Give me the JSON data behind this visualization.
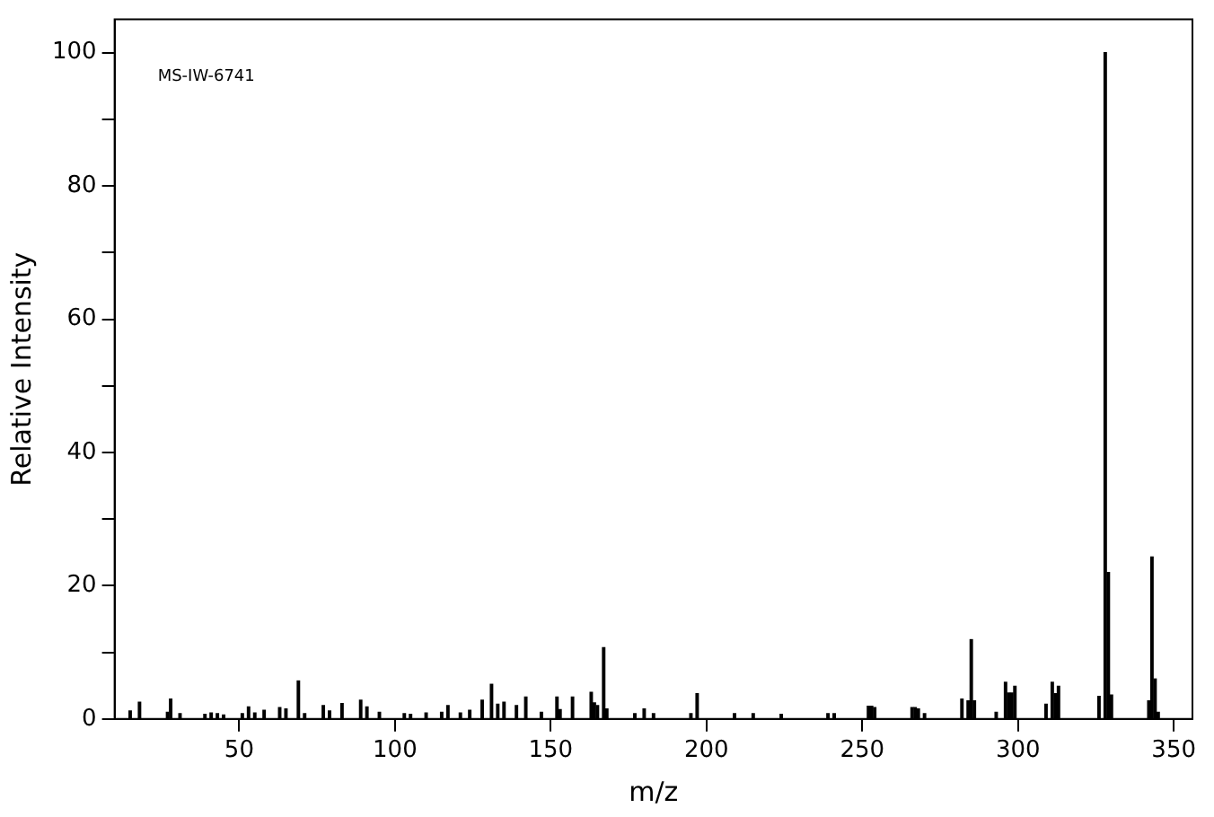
{
  "chart_data": {
    "type": "bar",
    "xlabel": "m/z",
    "ylabel": "Relative Intensity",
    "annotations": [
      "MS-IW-6741"
    ],
    "x": [
      15,
      18,
      27,
      28,
      31,
      39,
      41,
      43,
      45,
      51,
      53,
      55,
      58,
      63,
      65,
      69,
      71,
      77,
      79,
      83,
      89,
      91,
      95,
      103,
      105,
      110,
      115,
      117,
      121,
      124,
      128,
      131,
      133,
      135,
      139,
      142,
      147,
      152,
      153,
      157,
      163,
      164,
      165,
      167,
      168,
      177,
      180,
      183,
      195,
      197,
      209,
      215,
      224,
      239,
      241,
      252,
      253,
      254,
      266,
      267,
      268,
      270,
      282,
      284,
      285,
      286,
      293,
      296,
      297,
      298,
      299,
      309,
      311,
      312,
      313,
      326,
      328,
      329,
      330,
      342,
      343,
      344,
      345
    ],
    "values": [
      1.2,
      2.5,
      1,
      3,
      0.8,
      0.7,
      0.9,
      0.8,
      0.6,
      0.8,
      1.8,
      0.9,
      1.3,
      1.7,
      1.5,
      5.7,
      0.8,
      2,
      1.2,
      2.3,
      2.8,
      1.8,
      1,
      0.8,
      0.7,
      0.9,
      1,
      2,
      0.9,
      1.3,
      2.8,
      5.2,
      2.2,
      2.5,
      2,
      3.3,
      1,
      3.3,
      1.4,
      3.3,
      4,
      2.4,
      2,
      10.7,
      1.5,
      0.8,
      1.5,
      0.8,
      0.8,
      3.8,
      0.8,
      0.8,
      0.7,
      0.8,
      0.8,
      1.9,
      1.9,
      1.7,
      1.7,
      1.7,
      1.5,
      0.8,
      3,
      2.7,
      11.9,
      2.7,
      1,
      5.5,
      3.9,
      3.9,
      4.9,
      2.2,
      5.5,
      3.8,
      4.9,
      3.4,
      100,
      22,
      3.6,
      2.7,
      24.3,
      6,
      1
    ],
    "color": "#000000",
    "xlim": [
      10,
      356
    ],
    "ylim": [
      0,
      105
    ],
    "xticks": [
      50,
      100,
      150,
      200,
      250,
      300,
      350
    ],
    "yticks": [
      0,
      {
        "value": 10,
        "label": null
      },
      20,
      {
        "value": 30,
        "label": null
      },
      40,
      {
        "value": 50,
        "label": null
      },
      60,
      {
        "value": 70,
        "label": null
      },
      80,
      {
        "value": 90,
        "label": null
      },
      100
    ],
    "grid": false,
    "legend": false
  }
}
